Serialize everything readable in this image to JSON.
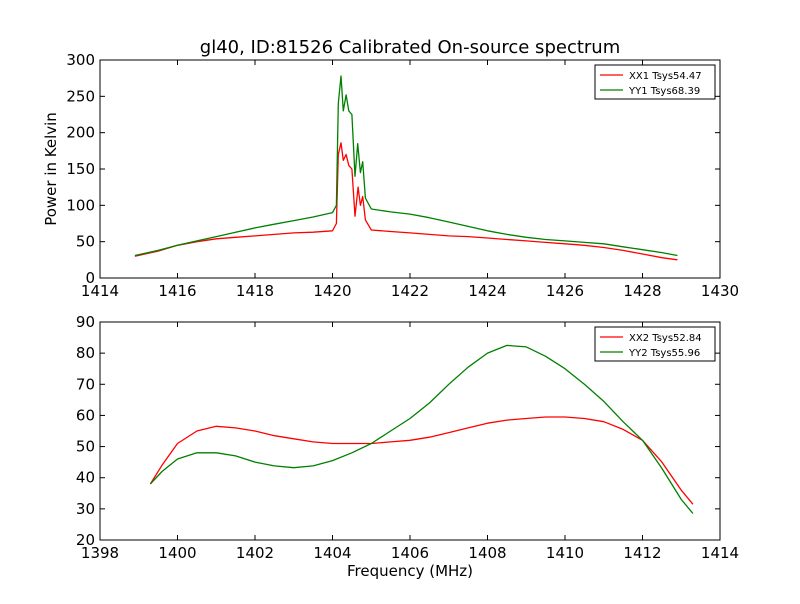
{
  "title": "gl40, ID:81526 Calibrated On-source spectrum",
  "chart_data": [
    {
      "type": "line",
      "title": "gl40, ID:81526 Calibrated On-source spectrum",
      "xlabel": "",
      "ylabel": "Power in Kelvin",
      "xlim": [
        1414,
        1430
      ],
      "ylim": [
        0,
        300
      ],
      "xticks": [
        "1414",
        "1416",
        "1418",
        "1420",
        "1422",
        "1424",
        "1426",
        "1428",
        "1430"
      ],
      "yticks": [
        "0",
        "50",
        "100",
        "150",
        "200",
        "250",
        "300"
      ],
      "legend_position": "top-right",
      "grid": false,
      "series": [
        {
          "name": "XX1 Tsys54.47",
          "color": "#ff0000",
          "points": [
            [
              1414.9,
              30
            ],
            [
              1415.5,
              37
            ],
            [
              1416,
              45
            ],
            [
              1416.5,
              50
            ],
            [
              1417,
              54
            ],
            [
              1417.5,
              56
            ],
            [
              1418,
              58
            ],
            [
              1418.5,
              60
            ],
            [
              1419,
              62
            ],
            [
              1419.5,
              63
            ],
            [
              1420,
              65
            ],
            [
              1420.1,
              75
            ],
            [
              1420.15,
              170
            ],
            [
              1420.22,
              186
            ],
            [
              1420.28,
              162
            ],
            [
              1420.35,
              170
            ],
            [
              1420.42,
              155
            ],
            [
              1420.5,
              150
            ],
            [
              1420.58,
              85
            ],
            [
              1420.66,
              125
            ],
            [
              1420.72,
              100
            ],
            [
              1420.78,
              112
            ],
            [
              1420.85,
              80
            ],
            [
              1421,
              66
            ],
            [
              1421.5,
              64
            ],
            [
              1422,
              62
            ],
            [
              1422.5,
              60
            ],
            [
              1423,
              58
            ],
            [
              1423.5,
              57
            ],
            [
              1424,
              55
            ],
            [
              1424.5,
              53
            ],
            [
              1425,
              51
            ],
            [
              1425.5,
              49
            ],
            [
              1426,
              47
            ],
            [
              1426.5,
              45
            ],
            [
              1427,
              42
            ],
            [
              1427.5,
              38
            ],
            [
              1428,
              33
            ],
            [
              1428.5,
              28
            ],
            [
              1428.9,
              25
            ]
          ]
        },
        {
          "name": "YY1 Tsys68.39",
          "color": "#008000",
          "points": [
            [
              1414.9,
              31
            ],
            [
              1415.5,
              38
            ],
            [
              1416,
              45
            ],
            [
              1416.5,
              51
            ],
            [
              1417,
              57
            ],
            [
              1417.5,
              63
            ],
            [
              1418,
              69
            ],
            [
              1418.5,
              74
            ],
            [
              1419,
              79
            ],
            [
              1419.5,
              84
            ],
            [
              1420,
              90
            ],
            [
              1420.1,
              100
            ],
            [
              1420.15,
              240
            ],
            [
              1420.22,
              278
            ],
            [
              1420.28,
              230
            ],
            [
              1420.35,
              252
            ],
            [
              1420.42,
              230
            ],
            [
              1420.5,
              225
            ],
            [
              1420.58,
              140
            ],
            [
              1420.65,
              185
            ],
            [
              1420.72,
              145
            ],
            [
              1420.78,
              160
            ],
            [
              1420.85,
              110
            ],
            [
              1421,
              95
            ],
            [
              1421.5,
              91
            ],
            [
              1422,
              88
            ],
            [
              1422.5,
              83
            ],
            [
              1423,
              77
            ],
            [
              1423.5,
              71
            ],
            [
              1424,
              65
            ],
            [
              1424.5,
              60
            ],
            [
              1425,
              56
            ],
            [
              1425.5,
              53
            ],
            [
              1426,
              51
            ],
            [
              1426.5,
              49
            ],
            [
              1427,
              47
            ],
            [
              1427.5,
              43
            ],
            [
              1428,
              39
            ],
            [
              1428.5,
              35
            ],
            [
              1428.9,
              31
            ]
          ]
        }
      ]
    },
    {
      "type": "line",
      "title": "",
      "xlabel": "Frequency (MHz)",
      "ylabel": "",
      "xlim": [
        1398,
        1414
      ],
      "ylim": [
        20,
        90
      ],
      "xticks": [
        "1398",
        "1400",
        "1402",
        "1404",
        "1406",
        "1408",
        "1410",
        "1412",
        "1414"
      ],
      "yticks": [
        "20",
        "30",
        "40",
        "50",
        "60",
        "70",
        "80",
        "90"
      ],
      "legend_position": "top-right",
      "grid": false,
      "series": [
        {
          "name": "XX2 Tsys52.84",
          "color": "#ff0000",
          "points": [
            [
              1399.3,
              38
            ],
            [
              1399.6,
              44
            ],
            [
              1400,
              51
            ],
            [
              1400.5,
              55
            ],
            [
              1401,
              56.5
            ],
            [
              1401.5,
              56
            ],
            [
              1402,
              55
            ],
            [
              1402.5,
              53.5
            ],
            [
              1403,
              52.5
            ],
            [
              1403.5,
              51.5
            ],
            [
              1404,
              51
            ],
            [
              1404.5,
              51
            ],
            [
              1405,
              51
            ],
            [
              1405.5,
              51.5
            ],
            [
              1406,
              52
            ],
            [
              1406.5,
              53
            ],
            [
              1407,
              54.5
            ],
            [
              1407.5,
              56
            ],
            [
              1408,
              57.5
            ],
            [
              1408.5,
              58.5
            ],
            [
              1409,
              59
            ],
            [
              1409.5,
              59.5
            ],
            [
              1410,
              59.5
            ],
            [
              1410.5,
              59
            ],
            [
              1411,
              58
            ],
            [
              1411.5,
              55.5
            ],
            [
              1412,
              52
            ],
            [
              1412.5,
              45
            ],
            [
              1413,
              36
            ],
            [
              1413.3,
              31.5
            ]
          ]
        },
        {
          "name": "YY2 Tsys55.96",
          "color": "#008000",
          "points": [
            [
              1399.3,
              38
            ],
            [
              1399.6,
              42
            ],
            [
              1400,
              46
            ],
            [
              1400.5,
              48
            ],
            [
              1401,
              48
            ],
            [
              1401.5,
              47
            ],
            [
              1402,
              45
            ],
            [
              1402.5,
              43.8
            ],
            [
              1403,
              43.2
            ],
            [
              1403.5,
              43.8
            ],
            [
              1404,
              45.5
            ],
            [
              1404.5,
              48
            ],
            [
              1405,
              51
            ],
            [
              1405.5,
              55
            ],
            [
              1406,
              59
            ],
            [
              1406.5,
              64
            ],
            [
              1407,
              70
            ],
            [
              1407.5,
              75.5
            ],
            [
              1408,
              80
            ],
            [
              1408.5,
              82.5
            ],
            [
              1409,
              82
            ],
            [
              1409.5,
              79
            ],
            [
              1410,
              75
            ],
            [
              1410.5,
              70
            ],
            [
              1411,
              64.5
            ],
            [
              1411.5,
              58
            ],
            [
              1412,
              52
            ],
            [
              1412.5,
              43
            ],
            [
              1413,
              33
            ],
            [
              1413.3,
              28.5
            ]
          ]
        }
      ]
    }
  ]
}
